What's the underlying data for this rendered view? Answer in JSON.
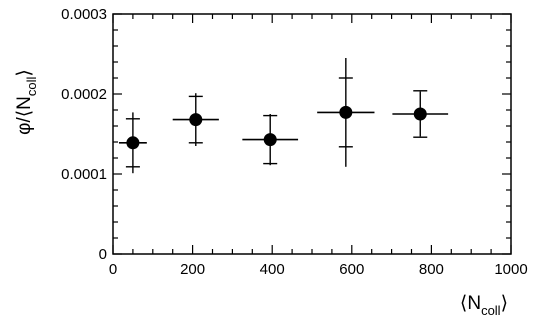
{
  "chart_data": {
    "type": "scatter",
    "title": "",
    "xlabel": "⟨N",
    "xlabel_sub": "coll",
    "xlabel_close": "⟩",
    "ylabel": "φ/⟨N",
    "ylabel_sub": "coll",
    "ylabel_close": "⟩",
    "xlim": [
      0,
      1000
    ],
    "ylim": [
      0,
      0.0003
    ],
    "x_ticks": [
      0,
      200,
      400,
      600,
      800,
      1000
    ],
    "x_tick_labels": [
      "0",
      "200",
      "400",
      "600",
      "800",
      "1000"
    ],
    "y_ticks": [
      0,
      0.0001,
      0.0002,
      0.0003
    ],
    "y_tick_labels": [
      "0",
      "0.0001",
      "0.0002",
      "0.0003"
    ],
    "grid": false,
    "marker_color": "#000000",
    "points": [
      {
        "x": 50,
        "y": 0.000139,
        "xerr": 35,
        "yerr_stat": 3e-05,
        "yerr_sys": 3.8e-05
      },
      {
        "x": 208,
        "y": 0.000168,
        "xerr": 58,
        "yerr_stat": 2.9e-05,
        "yerr_sys": 3.3e-05
      },
      {
        "x": 395,
        "y": 0.000143,
        "xerr": 70,
        "yerr_stat": 3e-05,
        "yerr_sys": 3.2e-05
      },
      {
        "x": 585,
        "y": 0.000177,
        "xerr": 72,
        "yerr_stat": 4.3e-05,
        "yerr_sys": 6.8e-05
      },
      {
        "x": 772,
        "y": 0.000175,
        "xerr": 70,
        "yerr_stat": 2.9e-05,
        "yerr_sys": 2.8e-05
      }
    ]
  }
}
